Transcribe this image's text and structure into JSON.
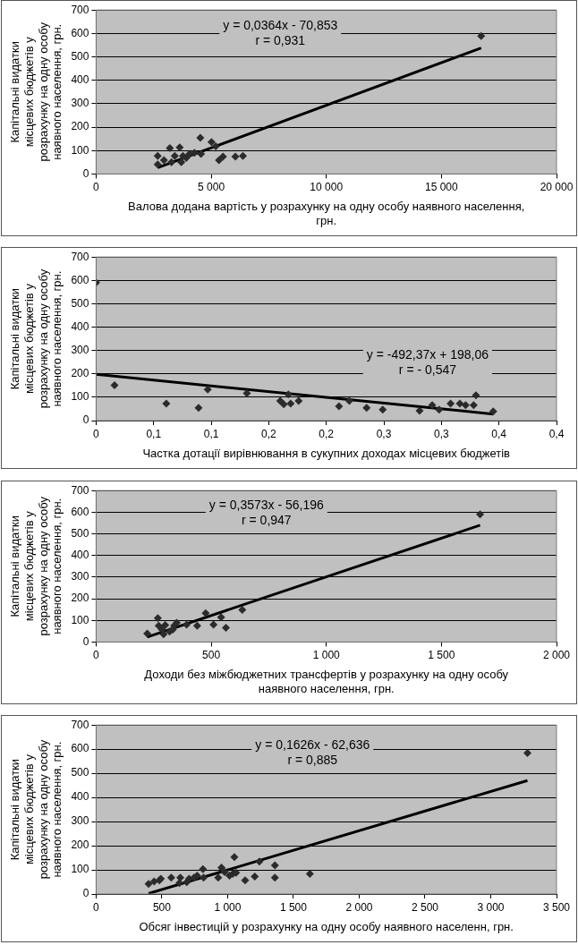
{
  "chart_data": [
    {
      "type": "scatter",
      "xlabel": "Валова додана вартість у розрахунку на одну особу наявного населення, грн.",
      "ylabel": "Капітальні видатки місцевих бюджетів у розрахунку на одну особу наявного населення, грн.",
      "xlim": [
        0,
        20000
      ],
      "xticks": [
        {
          "value": 0,
          "label": "0"
        },
        {
          "value": 5000,
          "label": "5 000"
        },
        {
          "value": 10000,
          "label": "10 000"
        },
        {
          "value": 15000,
          "label": "15 000"
        },
        {
          "value": 20000,
          "label": "20 000"
        }
      ],
      "ylim": [
        0,
        700
      ],
      "yticks": [
        0,
        100,
        200,
        300,
        400,
        500,
        600,
        700
      ],
      "grid": "y",
      "marker": "diamond",
      "annotations": [
        "y = 0,0364x - 70,853",
        "r = 0,931"
      ],
      "series": [
        {
          "color": "#2b2b2b",
          "x": [
            2676,
            2676,
            2947,
            3203,
            3274,
            3416,
            3630,
            3701,
            3772,
            3915,
            4057,
            4270,
            4527,
            4555,
            5011,
            5196,
            5338,
            5509,
            6050,
            6377,
            16726
          ],
          "values": [
            77,
            41,
            59,
            110,
            50,
            77,
            113,
            50,
            77,
            68,
            86,
            90,
            154,
            86,
            136,
            118,
            59,
            74,
            74,
            77,
            589
          ]
        },
        {
          "type": "line",
          "color": "#000000",
          "marker": "none",
          "x": [
            2676,
            16726
          ],
          "values": [
            27,
            538
          ]
        }
      ]
    },
    {
      "type": "scatter",
      "xlabel": "Частка дотації вирівнювання в сукупних доходах місцевих бюджетів",
      "ylabel": "Капітальні видатки місцевих бюджетів у розрахунку на одну особу наявного населення, грн.",
      "xlim": [
        0,
        0.4
      ],
      "xticks": [
        {
          "value": 0,
          "label": "0"
        },
        {
          "value": 0.05,
          "label": "0,1"
        },
        {
          "value": 0.1,
          "label": "0,1"
        },
        {
          "value": 0.15,
          "label": "0,2"
        },
        {
          "value": 0.2,
          "label": "0,2"
        },
        {
          "value": 0.25,
          "label": "0,3"
        },
        {
          "value": 0.3,
          "label": "0,3"
        },
        {
          "value": 0.35,
          "label": "0,4"
        },
        {
          "value": 0.4,
          "label": "0,4"
        }
      ],
      "ylim": [
        0,
        700
      ],
      "yticks": [
        0,
        100,
        200,
        300,
        400,
        500,
        600,
        700
      ],
      "grid": "y",
      "marker": "diamond",
      "annotations": [
        "y = -492,37x + 198,06",
        "r = - 0,547"
      ],
      "series": [
        {
          "color": "#2b2b2b",
          "x": [
            0,
            0.016,
            0.061,
            0.089,
            0.097,
            0.131,
            0.16,
            0.163,
            0.167,
            0.169,
            0.176,
            0.211,
            0.22,
            0.235,
            0.249,
            0.281,
            0.292,
            0.298,
            0.308,
            0.316,
            0.321,
            0.328,
            0.33,
            0.345
          ],
          "values": [
            591,
            151,
            73,
            55,
            133,
            117,
            84,
            70,
            112,
            73,
            84,
            61,
            84,
            55,
            47,
            42,
            66,
            47,
            73,
            73,
            66,
            66,
            108,
            39
          ]
        },
        {
          "type": "line",
          "color": "#000000",
          "marker": "none",
          "x": [
            0,
            0.345
          ],
          "values": [
            198,
            28
          ]
        }
      ]
    },
    {
      "type": "scatter",
      "xlabel": "Доходи без міжбюджетних трансфертів у розрахунку на одну особу наявного населення, грн.",
      "ylabel": "Капітальні видатки місцевих бюджетів у розрахунку на одну особу наявного населення, грн.",
      "xlim": [
        0,
        2000
      ],
      "xticks": [
        {
          "value": 0,
          "label": "0"
        },
        {
          "value": 500,
          "label": "500"
        },
        {
          "value": 1000,
          "label": "1 000"
        },
        {
          "value": 1500,
          "label": "1 500"
        },
        {
          "value": 2000,
          "label": "2 000"
        }
      ],
      "ylim": [
        0,
        700
      ],
      "yticks": [
        0,
        100,
        200,
        300,
        400,
        500,
        600,
        700
      ],
      "grid": "y",
      "marker": "diamond",
      "annotations": [
        "y = 0,3573x - 56,196",
        "r = 0,947"
      ],
      "series": [
        {
          "color": "#2b2b2b",
          "x": [
            222,
            268,
            272,
            286,
            293,
            300,
            319,
            333,
            339,
            350,
            393,
            439,
            476,
            510,
            543,
            564,
            635,
            1668
          ],
          "values": [
            39,
            110,
            75,
            57,
            36,
            78,
            48,
            57,
            75,
            89,
            80,
            75,
            133,
            80,
            114,
            66,
            149,
            590
          ]
        },
        {
          "type": "line",
          "color": "#000000",
          "marker": "none",
          "x": [
            222,
            1668
          ],
          "values": [
            23,
            540
          ]
        }
      ]
    },
    {
      "type": "scatter",
      "xlabel": "Обсяг інвестицій у розрахунку на одну особу наявного населенн, грн.",
      "ylabel": "Капітальні видатки місцевих бюджетів у розрахунку на одну особу наявного населення, грн.",
      "xlim": [
        0,
        3500
      ],
      "xticks": [
        {
          "value": 0,
          "label": "0"
        },
        {
          "value": 500,
          "label": "500"
        },
        {
          "value": 1000,
          "label": "1 000"
        },
        {
          "value": 1500,
          "label": "1 500"
        },
        {
          "value": 2000,
          "label": "2 000"
        },
        {
          "value": 2500,
          "label": "2 500"
        },
        {
          "value": 3000,
          "label": "3 000"
        },
        {
          "value": 3500,
          "label": "3 500"
        }
      ],
      "ylim": [
        0,
        700
      ],
      "yticks": [
        0,
        100,
        200,
        300,
        400,
        500,
        600,
        700
      ],
      "grid": "y",
      "marker": "diamond",
      "annotations": [
        "y = 0,1626x - 62,636",
        "r = 0,885"
      ],
      "series": [
        {
          "color": "#2b2b2b",
          "x": [
            399,
            441,
            480,
            492,
            571,
            633,
            640,
            689,
            707,
            744,
            768,
            812,
            817,
            928,
            953,
            977,
            1014,
            1039,
            1051,
            1064,
            1133,
            1206,
            1241,
            1359,
            1359,
            1625,
            3279
          ],
          "values": [
            42,
            52,
            57,
            63,
            68,
            45,
            68,
            49,
            63,
            68,
            76,
            103,
            68,
            68,
            109,
            91,
            76,
            83,
            153,
            88,
            57,
            72,
            134,
            119,
            68,
            83,
            584
          ]
        },
        {
          "type": "line",
          "color": "#000000",
          "marker": "none",
          "x": [
            399,
            3279
          ],
          "values": [
            2,
            470
          ]
        }
      ]
    }
  ]
}
